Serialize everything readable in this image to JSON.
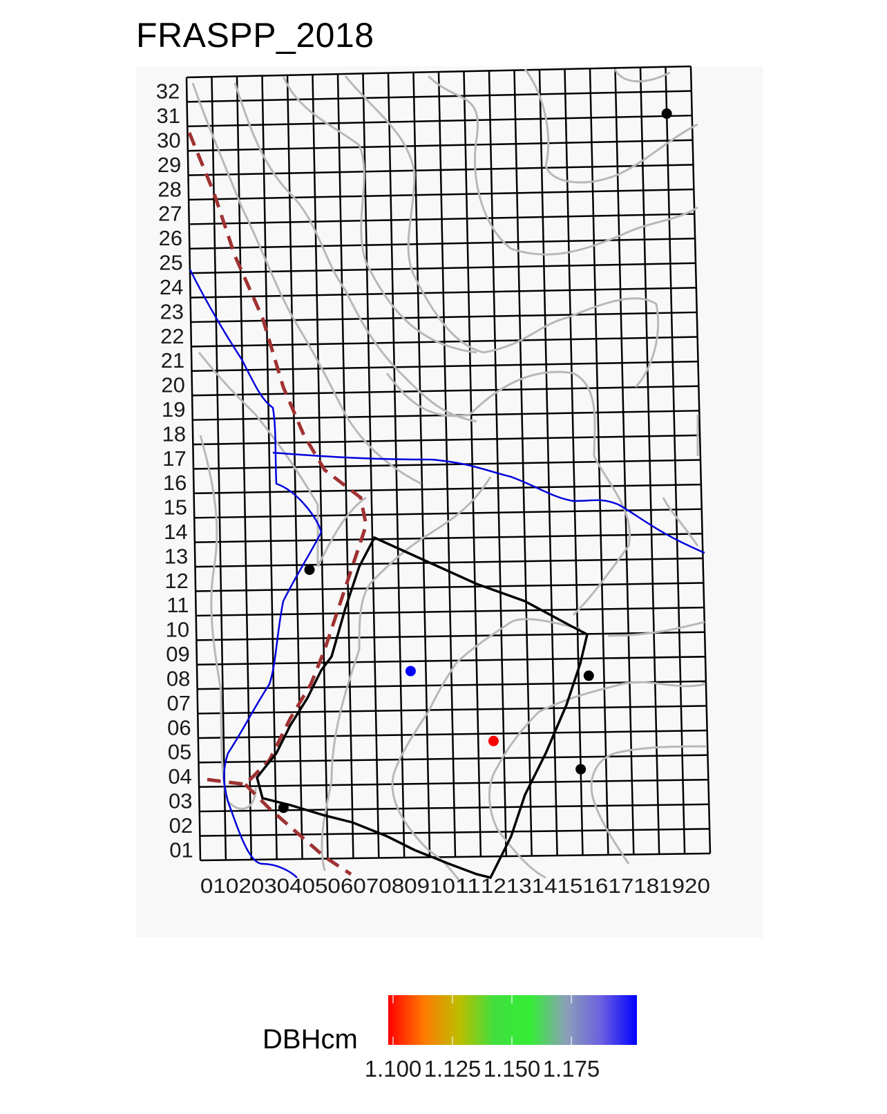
{
  "title": "FRASPP_2018",
  "map": {
    "x_labels": [
      "01",
      "02",
      "03",
      "04",
      "05",
      "06",
      "07",
      "08",
      "09",
      "10",
      "11",
      "12",
      "13",
      "14",
      "15",
      "16",
      "17",
      "18",
      "19",
      "20"
    ],
    "y_labels": [
      "01",
      "02",
      "03",
      "04",
      "05",
      "06",
      "07",
      "08",
      "09",
      "10",
      "11",
      "12",
      "13",
      "14",
      "15",
      "16",
      "17",
      "18",
      "19",
      "20",
      "21",
      "22",
      "23",
      "24",
      "25",
      "26",
      "27",
      "28",
      "29",
      "30",
      "31",
      "32"
    ],
    "columns": 20,
    "rows": 32,
    "colors": {
      "grid": "#000000",
      "contour": "#b8b8b8",
      "stream": "#0000dd",
      "boundary_dashed": "#a03232",
      "polygon": "#000000",
      "panel_background": "#f8f8f8"
    },
    "points": [
      {
        "x": 19.5,
        "y": 30.6,
        "dbh": null,
        "color": "#000000"
      },
      {
        "x": 5.0,
        "y": 12.3,
        "dbh": null,
        "color": "#000000"
      },
      {
        "x": 8.9,
        "y": 8.1,
        "dbh": 1.2,
        "color": "#0000ff"
      },
      {
        "x": 15.9,
        "y": 7.8,
        "dbh": null,
        "color": "#000000"
      },
      {
        "x": 12.1,
        "y": 5.2,
        "dbh": 1.1,
        "color": "#ff0000"
      },
      {
        "x": 15.5,
        "y": 4.0,
        "dbh": null,
        "color": "#000000"
      },
      {
        "x": 3.8,
        "y": 2.6,
        "dbh": null,
        "color": "#000000"
      }
    ]
  },
  "legend": {
    "title": "DBHcm",
    "labels": [
      "1.100",
      "1.125",
      "1.150",
      "1.175"
    ],
    "colors": [
      "#ff0000",
      "#ff7a00",
      "#bcbe00",
      "#3fdf3f",
      "#36ec36",
      "#8aa0b8",
      "#6c5fe0",
      "#0000ff"
    ]
  }
}
